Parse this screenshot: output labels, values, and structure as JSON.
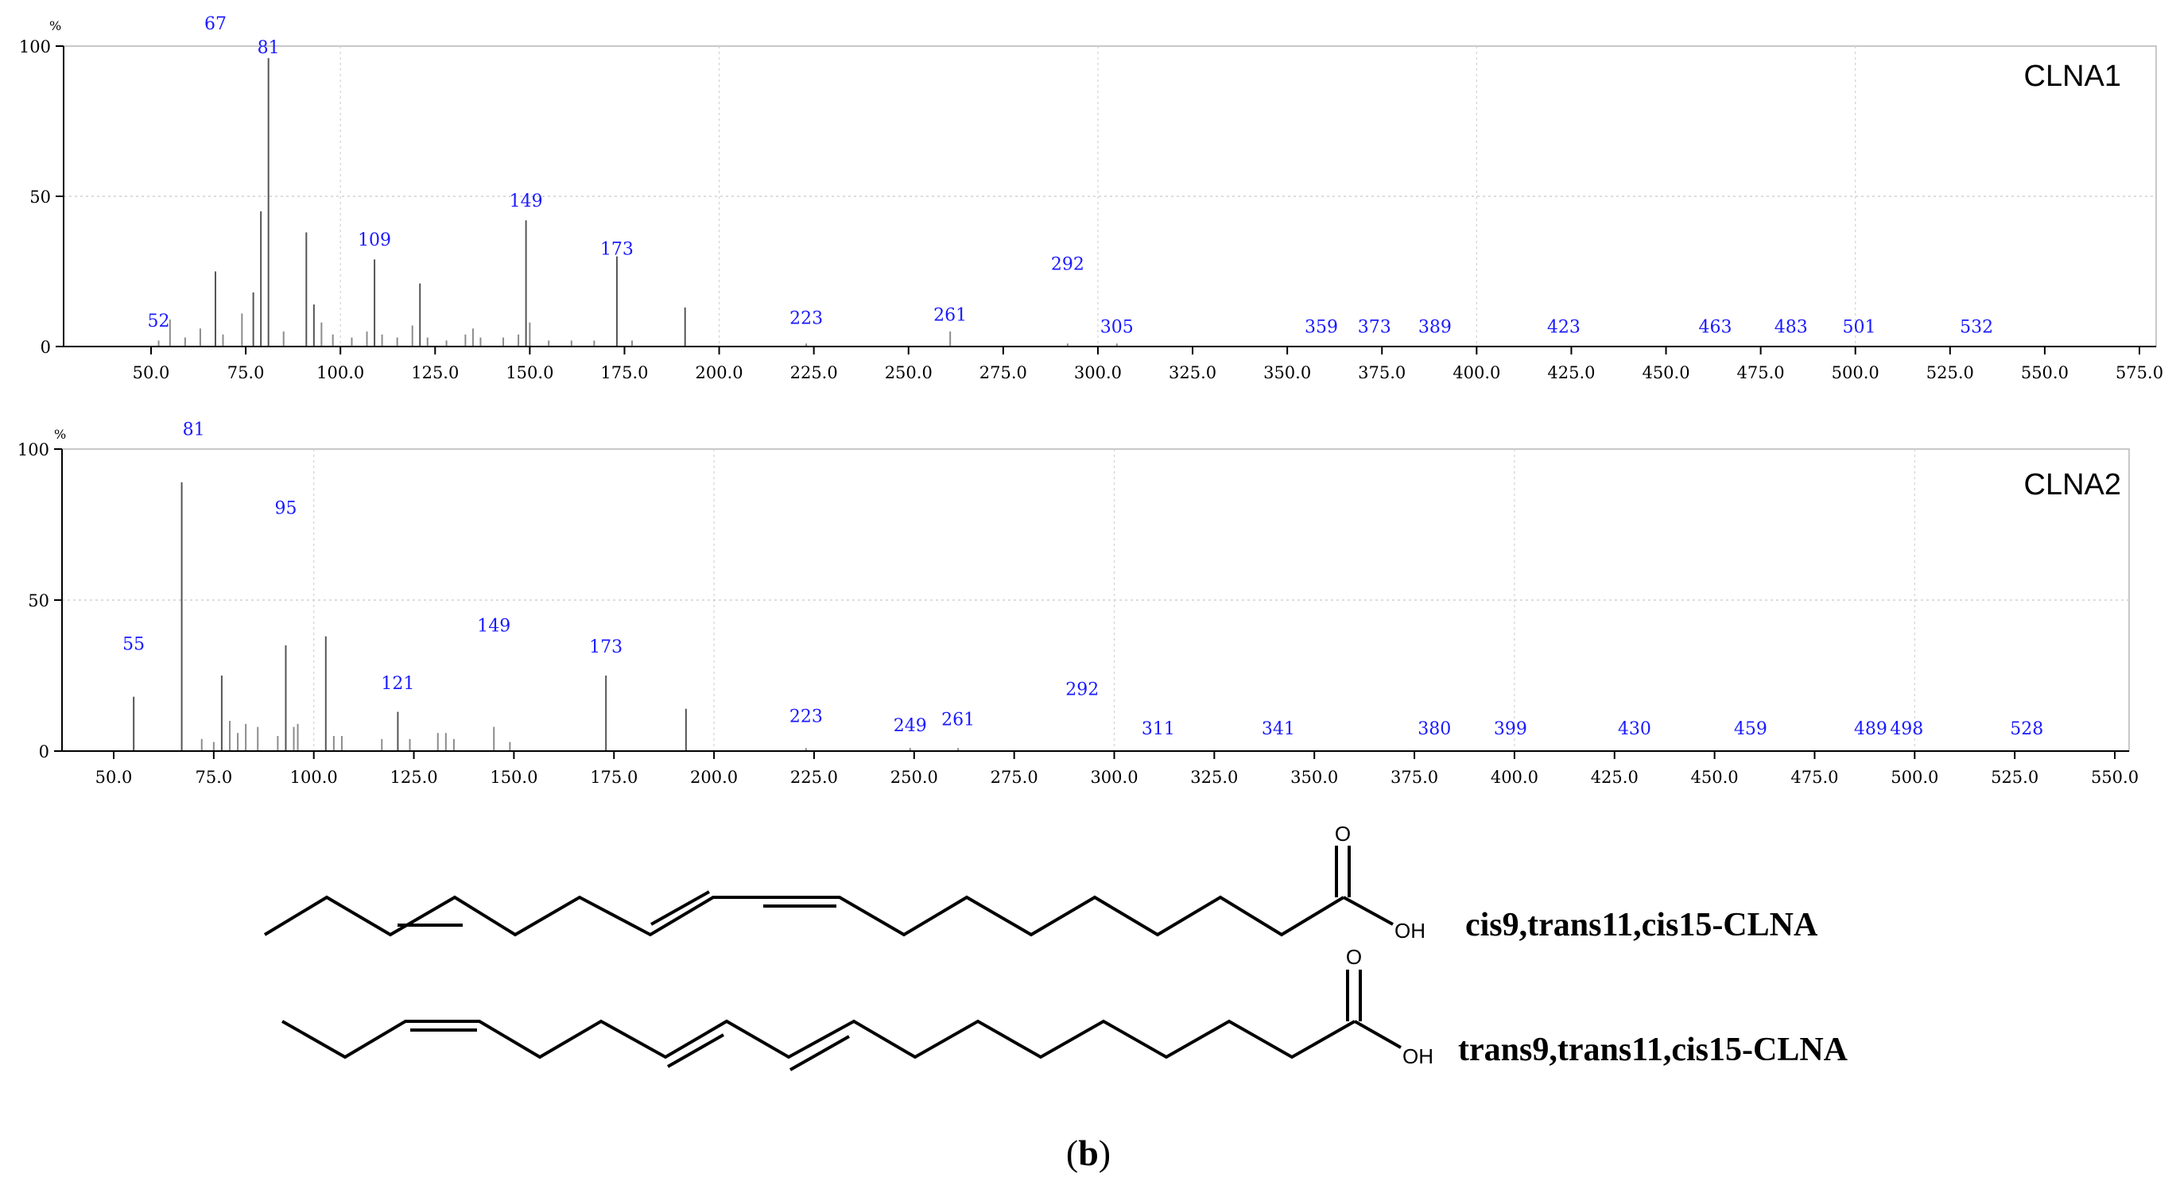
{
  "chart_data": [
    {
      "type": "bar",
      "title": "CLNA1",
      "ylabel": "%",
      "xlim": [
        0,
        575
      ],
      "ylim": [
        0,
        100
      ],
      "x_ticks": [
        50,
        75,
        100,
        125,
        150,
        175,
        200,
        225,
        250,
        275,
        300,
        325,
        350,
        375,
        400,
        425,
        450,
        475,
        500,
        525,
        550,
        575
      ],
      "x_tick_labels": [
        "50.0",
        "75.0",
        "100.0",
        "125.0",
        "150.0",
        "175.0",
        "200.0",
        "225.0",
        "250.0",
        "275.0",
        "300.0",
        "325.0",
        "350.0",
        "375.0",
        "400.0",
        "425.0",
        "450.0",
        "475.0",
        "500.0",
        "525.0",
        "550.0",
        "575.0"
      ],
      "y_ticks": [
        0,
        50,
        100
      ],
      "y_tick_labels": [
        "0",
        "50",
        "100"
      ],
      "peaks": [
        {
          "mz": 52,
          "intensity": 2
        },
        {
          "mz": 55,
          "intensity": 9
        },
        {
          "mz": 59,
          "intensity": 3
        },
        {
          "mz": 63,
          "intensity": 6
        },
        {
          "mz": 67,
          "intensity": 25
        },
        {
          "mz": 69,
          "intensity": 4
        },
        {
          "mz": 74,
          "intensity": 11
        },
        {
          "mz": 77,
          "intensity": 18
        },
        {
          "mz": 79,
          "intensity": 45
        },
        {
          "mz": 81,
          "intensity": 96
        },
        {
          "mz": 85,
          "intensity": 5
        },
        {
          "mz": 91,
          "intensity": 38
        },
        {
          "mz": 93,
          "intensity": 14
        },
        {
          "mz": 95,
          "intensity": 8
        },
        {
          "mz": 98,
          "intensity": 4
        },
        {
          "mz": 103,
          "intensity": 3
        },
        {
          "mz": 107,
          "intensity": 5
        },
        {
          "mz": 109,
          "intensity": 29
        },
        {
          "mz": 111,
          "intensity": 4
        },
        {
          "mz": 115,
          "intensity": 3
        },
        {
          "mz": 119,
          "intensity": 7
        },
        {
          "mz": 121,
          "intensity": 21
        },
        {
          "mz": 123,
          "intensity": 3
        },
        {
          "mz": 128,
          "intensity": 2
        },
        {
          "mz": 133,
          "intensity": 4
        },
        {
          "mz": 135,
          "intensity": 6
        },
        {
          "mz": 137,
          "intensity": 3
        },
        {
          "mz": 143,
          "intensity": 3
        },
        {
          "mz": 147,
          "intensity": 4
        },
        {
          "mz": 149,
          "intensity": 42
        },
        {
          "mz": 150,
          "intensity": 8
        },
        {
          "mz": 155,
          "intensity": 2
        },
        {
          "mz": 161,
          "intensity": 2
        },
        {
          "mz": 167,
          "intensity": 2
        },
        {
          "mz": 173,
          "intensity": 30
        },
        {
          "mz": 177,
          "intensity": 2
        },
        {
          "mz": 191,
          "intensity": 13
        },
        {
          "mz": 223,
          "intensity": 1
        },
        {
          "mz": 261,
          "intensity": 5
        },
        {
          "mz": 292,
          "intensity": 1
        },
        {
          "mz": 305,
          "intensity": 1
        }
      ],
      "labels": [
        {
          "text": "52",
          "mz": 52,
          "level": 5
        },
        {
          "text": "67",
          "mz": 67,
          "level": 104
        },
        {
          "text": "81",
          "mz": 81,
          "level": 96
        },
        {
          "text": "109",
          "mz": 109,
          "level": 32
        },
        {
          "text": "149",
          "mz": 149,
          "level": 45
        },
        {
          "text": "173",
          "mz": 173,
          "level": 29
        },
        {
          "text": "223",
          "mz": 223,
          "level": 6
        },
        {
          "text": "261",
          "mz": 261,
          "level": 7
        },
        {
          "text": "292",
          "mz": 292,
          "level": 24
        },
        {
          "text": "305",
          "mz": 305,
          "level": 3
        },
        {
          "text": "359",
          "mz": 359,
          "level": 3
        },
        {
          "text": "373",
          "mz": 373,
          "level": 3
        },
        {
          "text": "389",
          "mz": 389,
          "level": 3
        },
        {
          "text": "423",
          "mz": 423,
          "level": 3
        },
        {
          "text": "463",
          "mz": 463,
          "level": 3
        },
        {
          "text": "483",
          "mz": 483,
          "level": 3
        },
        {
          "text": "501",
          "mz": 501,
          "level": 3
        },
        {
          "text": "532",
          "mz": 532,
          "level": 3
        }
      ]
    },
    {
      "type": "bar",
      "title": "CLNA2",
      "ylabel": "%",
      "xlim": [
        38,
        560
      ],
      "ylim": [
        0,
        100
      ],
      "x_ticks": [
        50,
        75,
        100,
        125,
        150,
        175,
        200,
        225,
        250,
        275,
        300,
        325,
        350,
        375,
        400,
        425,
        450,
        475,
        500,
        525,
        550
      ],
      "x_tick_labels": [
        "50.0",
        "75.0",
        "100.0",
        "125.0",
        "150.0",
        "175.0",
        "200.0",
        "225.0",
        "250.0",
        "275.0",
        "300.0",
        "325.0",
        "350.0",
        "375.0",
        "400.0",
        "425.0",
        "450.0",
        "475.0",
        "500.0",
        "525.0",
        "550.0"
      ],
      "y_ticks": [
        0,
        50,
        100
      ],
      "y_tick_labels": [
        "0",
        "50",
        "100"
      ],
      "peaks": [
        {
          "mz": 55,
          "intensity": 18
        },
        {
          "mz": 67,
          "intensity": 89
        },
        {
          "mz": 72,
          "intensity": 4
        },
        {
          "mz": 75,
          "intensity": 3
        },
        {
          "mz": 77,
          "intensity": 25
        },
        {
          "mz": 79,
          "intensity": 10
        },
        {
          "mz": 81,
          "intensity": 6
        },
        {
          "mz": 83,
          "intensity": 9
        },
        {
          "mz": 86,
          "intensity": 8
        },
        {
          "mz": 91,
          "intensity": 5
        },
        {
          "mz": 93,
          "intensity": 35
        },
        {
          "mz": 95,
          "intensity": 8
        },
        {
          "mz": 96,
          "intensity": 9
        },
        {
          "mz": 103,
          "intensity": 38
        },
        {
          "mz": 105,
          "intensity": 5
        },
        {
          "mz": 107,
          "intensity": 5
        },
        {
          "mz": 117,
          "intensity": 4
        },
        {
          "mz": 121,
          "intensity": 13
        },
        {
          "mz": 124,
          "intensity": 4
        },
        {
          "mz": 131,
          "intensity": 6
        },
        {
          "mz": 133,
          "intensity": 6
        },
        {
          "mz": 135,
          "intensity": 4
        },
        {
          "mz": 145,
          "intensity": 8
        },
        {
          "mz": 149,
          "intensity": 3
        },
        {
          "mz": 173,
          "intensity": 25
        },
        {
          "mz": 193,
          "intensity": 14
        },
        {
          "mz": 223,
          "intensity": 1
        },
        {
          "mz": 249,
          "intensity": 1
        },
        {
          "mz": 261,
          "intensity": 1
        }
      ],
      "labels": [
        {
          "text": "55",
          "mz": 55,
          "level": 32
        },
        {
          "text": "81",
          "mz": 70,
          "level": 103
        },
        {
          "text": "95",
          "mz": 93,
          "level": 77
        },
        {
          "text": "121",
          "mz": 121,
          "level": 19
        },
        {
          "text": "149",
          "mz": 145,
          "level": 38
        },
        {
          "text": "173",
          "mz": 173,
          "level": 31
        },
        {
          "text": "223",
          "mz": 223,
          "level": 8
        },
        {
          "text": "249",
          "mz": 249,
          "level": 5
        },
        {
          "text": "261",
          "mz": 261,
          "level": 7
        },
        {
          "text": "292",
          "mz": 292,
          "level": 17
        },
        {
          "text": "311",
          "mz": 311,
          "level": 4
        },
        {
          "text": "341",
          "mz": 341,
          "level": 4
        },
        {
          "text": "380",
          "mz": 380,
          "level": 4
        },
        {
          "text": "399",
          "mz": 399,
          "level": 4
        },
        {
          "text": "430",
          "mz": 430,
          "level": 4
        },
        {
          "text": "459",
          "mz": 459,
          "level": 4
        },
        {
          "text": "489",
          "mz": 489,
          "level": 4
        },
        {
          "text": "498",
          "mz": 498,
          "level": 4
        },
        {
          "text": "528",
          "mz": 528,
          "level": 4
        }
      ]
    }
  ],
  "structures": [
    {
      "name": "cis9,trans11,cis15-CLNA",
      "oxygen_label": "O",
      "hydroxyl_label": "OH"
    },
    {
      "name": "trans9,trans11,cis15-CLNA",
      "oxygen_label": "O",
      "hydroxyl_label": "OH"
    }
  ],
  "caption": {
    "open": "(",
    "letter": "b",
    "close": ")"
  }
}
